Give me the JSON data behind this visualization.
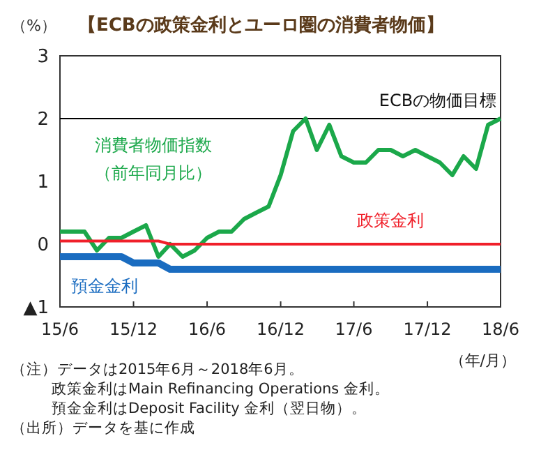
{
  "chart_data": {
    "type": "line",
    "title": "【ECBの政策金利とユーロ圏の消費者物価】",
    "ylabel": "（%）",
    "xlabel": "（年/月）",
    "x": [
      "2015-06",
      "2015-07",
      "2015-08",
      "2015-09",
      "2015-10",
      "2015-11",
      "2015-12",
      "2016-01",
      "2016-02",
      "2016-03",
      "2016-04",
      "2016-05",
      "2016-06",
      "2016-07",
      "2016-08",
      "2016-09",
      "2016-10",
      "2016-11",
      "2016-12",
      "2017-01",
      "2017-02",
      "2017-03",
      "2017-04",
      "2017-05",
      "2017-06",
      "2017-07",
      "2017-08",
      "2017-09",
      "2017-10",
      "2017-11",
      "2017-12",
      "2018-01",
      "2018-02",
      "2018-03",
      "2018-04",
      "2018-05",
      "2018-06"
    ],
    "series": [
      {
        "name": "消費者物価指数（前年同月比）",
        "color": "#1ba84a",
        "values": [
          0.2,
          0.2,
          0.2,
          -0.1,
          0.1,
          0.1,
          0.2,
          0.3,
          -0.2,
          0.0,
          -0.2,
          -0.1,
          0.1,
          0.2,
          0.2,
          0.4,
          0.5,
          0.6,
          1.1,
          1.8,
          2.0,
          1.5,
          1.9,
          1.4,
          1.3,
          1.3,
          1.5,
          1.5,
          1.4,
          1.5,
          1.4,
          1.3,
          1.1,
          1.4,
          1.2,
          1.9,
          2.0
        ]
      },
      {
        "name": "政策金利",
        "color": "#f0202a",
        "values": [
          0.05,
          0.05,
          0.05,
          0.05,
          0.05,
          0.05,
          0.05,
          0.05,
          0.05,
          0,
          0,
          0,
          0,
          0,
          0,
          0,
          0,
          0,
          0,
          0,
          0,
          0,
          0,
          0,
          0,
          0,
          0,
          0,
          0,
          0,
          0,
          0,
          0,
          0,
          0,
          0,
          0
        ]
      },
      {
        "name": "預金金利",
        "color": "#1a6cc0",
        "values": [
          -0.2,
          -0.2,
          -0.2,
          -0.2,
          -0.2,
          -0.2,
          -0.3,
          -0.3,
          -0.3,
          -0.4,
          -0.4,
          -0.4,
          -0.4,
          -0.4,
          -0.4,
          -0.4,
          -0.4,
          -0.4,
          -0.4,
          -0.4,
          -0.4,
          -0.4,
          -0.4,
          -0.4,
          -0.4,
          -0.4,
          -0.4,
          -0.4,
          -0.4,
          -0.4,
          -0.4,
          -0.4,
          -0.4,
          -0.4,
          -0.4,
          -0.4,
          -0.4
        ]
      }
    ],
    "xlim": [
      "2015-06",
      "2018-06"
    ],
    "xticks": [
      {
        "value": "2015-06",
        "label": "15/6"
      },
      {
        "value": "2015-12",
        "label": "15/12"
      },
      {
        "value": "2016-06",
        "label": "16/6"
      },
      {
        "value": "2016-12",
        "label": "16/12"
      },
      {
        "value": "2017-06",
        "label": "17/6"
      },
      {
        "value": "2017-12",
        "label": "17/12"
      },
      {
        "value": "2018-06",
        "label": "18/6"
      }
    ],
    "ylim": [
      -1,
      3
    ],
    "yticks": [
      {
        "value": -1,
        "label": "▲1"
      },
      0,
      1,
      2,
      3
    ],
    "ref_lines": [
      {
        "axis": "y",
        "value": 2,
        "label": "ECBの物価目標",
        "color": "#000000"
      }
    ],
    "grid": false,
    "legend": false,
    "line_style": "solid",
    "annotations": [
      "（注）データは2015年6月～2018年6月。",
      "政策金利はMain Refinancing  Operations 金利。",
      "預金金利はDeposit Facility 金利（翌日物）。",
      "（出所）データを基に作成"
    ]
  }
}
